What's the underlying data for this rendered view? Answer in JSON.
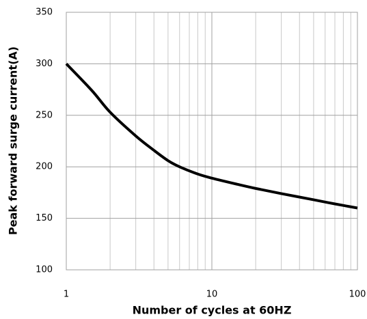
{
  "chart_data": {
    "type": "line",
    "x_label": "Number of cycles at 60HZ",
    "y_label": "Peak forward surge current(A)",
    "x": [
      1,
      1.5,
      2,
      3,
      4,
      5,
      6,
      8,
      10,
      15,
      20,
      30,
      50,
      70,
      100
    ],
    "series": [
      {
        "name": "Peak forward surge current",
        "color": "#000000",
        "values": [
          300,
          274,
          253,
          230,
          216,
          206,
          200,
          193,
          189,
          183,
          179,
          174,
          168,
          164,
          160
        ]
      }
    ],
    "xlim": [
      1,
      100
    ],
    "xticks": [
      1,
      10,
      100
    ],
    "xminorticks": [
      2,
      3,
      4,
      5,
      6,
      7,
      8,
      9,
      20,
      30,
      40,
      50,
      60,
      70,
      80,
      90
    ],
    "xlog": true,
    "ylim": [
      100,
      350
    ],
    "yticks": [
      100,
      150,
      200,
      250,
      300,
      350
    ],
    "grid": true
  }
}
